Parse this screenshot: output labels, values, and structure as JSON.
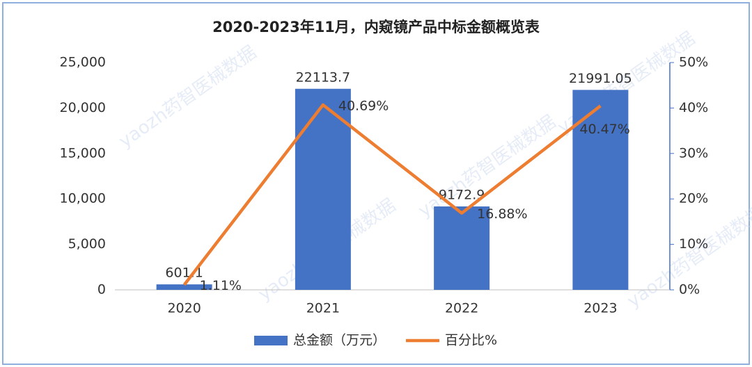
{
  "chart_data": {
    "type": "bar",
    "title": "2020-2023年11月，内窥镜产品中标金额概览表",
    "categories": [
      "2020",
      "2021",
      "2022",
      "2023"
    ],
    "series": [
      {
        "name": "总金额（万元）",
        "type": "bar",
        "color": "#4472c4",
        "values": [
          601.1,
          22113.7,
          9172.9,
          21991.05
        ]
      },
      {
        "name": "百分比%",
        "type": "line",
        "axis": "y2",
        "color": "#ed7d31",
        "values": [
          1.11,
          40.69,
          16.88,
          40.47
        ],
        "value_labels": [
          "1.11%",
          "40.69%",
          "16.88%",
          "40.47%"
        ]
      }
    ],
    "ylim": [
      0,
      25000
    ],
    "yticks": [
      0,
      {
        "value": 5000,
        "label": "5,000"
      },
      {
        "value": 10000,
        "label": "10,000"
      },
      {
        "value": 15000,
        "label": "15,000"
      },
      {
        "value": 20000,
        "label": "20,000"
      },
      {
        "value": 25000,
        "label": "25,000"
      }
    ],
    "y2lim": [
      0,
      50
    ],
    "y2ticks": [
      {
        "value": 0,
        "label": "0%"
      },
      {
        "value": 10,
        "label": "10%"
      },
      {
        "value": 20,
        "label": "20%"
      },
      {
        "value": 30,
        "label": "30%"
      },
      {
        "value": 40,
        "label": "40%"
      },
      {
        "value": 50,
        "label": "50%"
      }
    ],
    "legend": "bottom",
    "watermark": "yaozh药智医械数据"
  }
}
